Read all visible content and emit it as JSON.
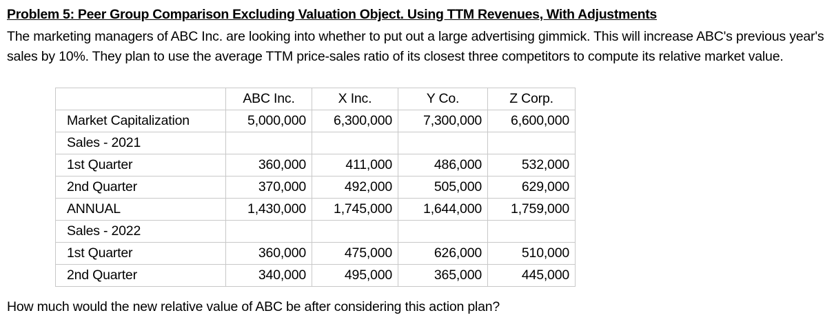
{
  "title": "Problem 5: Peer Group Comparison Excluding Valuation Object. Using TTM Revenues, With Adjustments",
  "paragraph": "The marketing managers of ABC Inc. are looking into whether to put out a large advertising gimmick. This will increase ABC's previous year's sales by 10%. They plan to use the average TTM price-sales ratio of its closest three competitors to compute its relative market value.",
  "table": {
    "headers": [
      "",
      "ABC Inc.",
      "X Inc.",
      "Y Co.",
      "Z Corp."
    ],
    "rows": [
      [
        "Market Capitalization",
        "5,000,000",
        "6,300,000",
        "7,300,000",
        "6,600,000"
      ],
      [
        "Sales - 2021",
        "",
        "",
        "",
        ""
      ],
      [
        "1st Quarter",
        "360,000",
        "411,000",
        "486,000",
        "532,000"
      ],
      [
        "2nd Quarter",
        "370,000",
        "492,000",
        "505,000",
        "629,000"
      ],
      [
        "ANNUAL",
        "1,430,000",
        "1,745,000",
        "1,644,000",
        "1,759,000"
      ],
      [
        "Sales - 2022",
        "",
        "",
        "",
        ""
      ],
      [
        "1st Quarter",
        "360,000",
        "475,000",
        "626,000",
        "510,000"
      ],
      [
        "2nd Quarter",
        "340,000",
        "495,000",
        "365,000",
        "445,000"
      ]
    ]
  },
  "question": "How much would the new relative value of ABC be after considering this action plan?"
}
